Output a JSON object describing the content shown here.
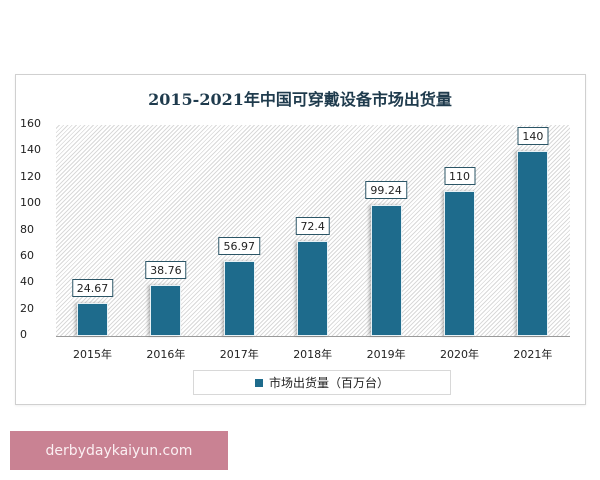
{
  "chart_data": {
    "type": "bar",
    "title": "2015-2021年中国可穿戴设备市场出货量",
    "categories": [
      "2015年",
      "2016年",
      "2017年",
      "2018年",
      "2019年",
      "2020年",
      "2021年"
    ],
    "series": [
      {
        "name": "市场出货量（百万台）",
        "values": [
          24.67,
          38.76,
          56.97,
          72.4,
          99.24,
          110,
          140
        ],
        "color": "#1e6b8c"
      }
    ],
    "data_labels": [
      "24.67",
      "38.76",
      "56.97",
      "72.4",
      "99.24",
      "110",
      "140"
    ],
    "xlabel": "",
    "ylabel": "",
    "ylim": [
      0,
      160
    ],
    "yticks": [
      "0",
      "20",
      "40",
      "60",
      "80",
      "100",
      "120",
      "140",
      "160"
    ],
    "grid": false,
    "legend_position": "bottom"
  },
  "legend": {
    "label": "市场出货量（百万台）"
  },
  "watermark": {
    "text": "derbydaykaiyun.com"
  }
}
